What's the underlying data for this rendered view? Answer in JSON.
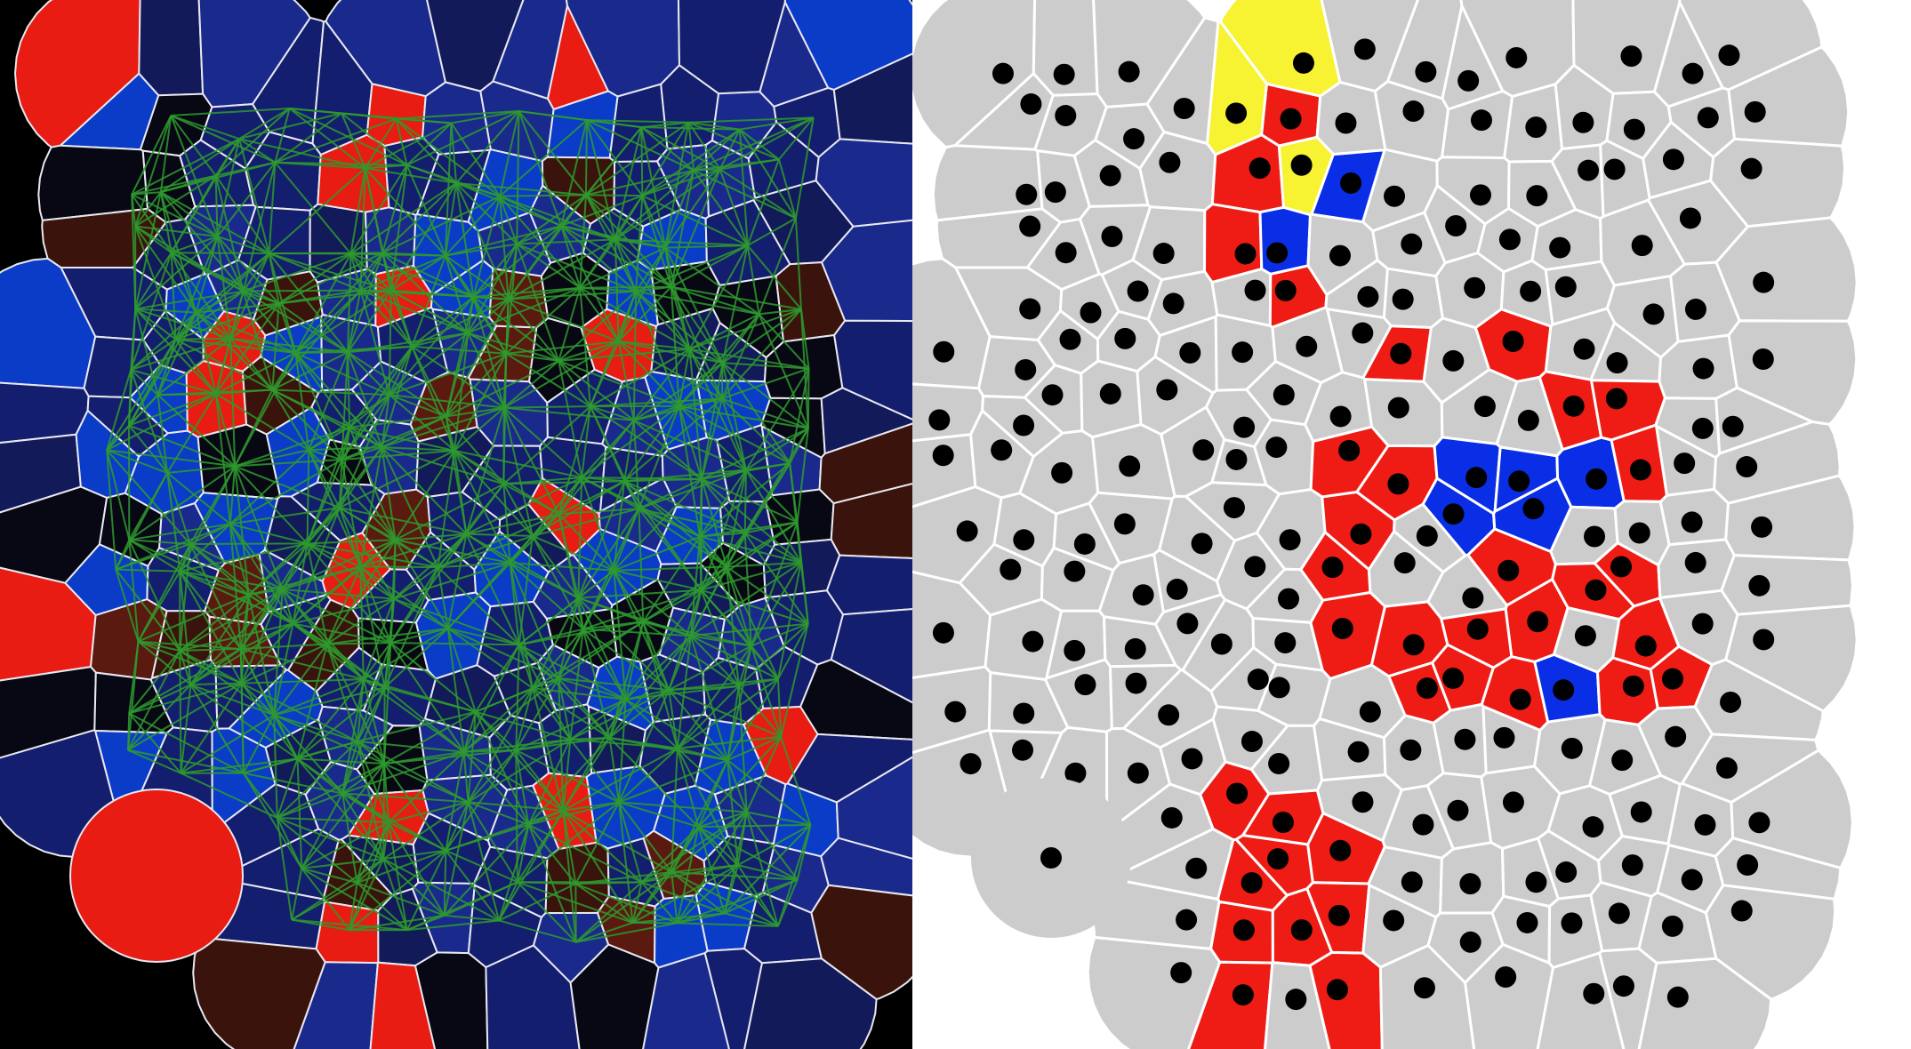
{
  "figure": {
    "panels": [
      {
        "name": "voronoi-network-intensity",
        "background": "#000000",
        "cell_stroke": "#e8e8f0",
        "network_color": "#2e9a2e",
        "palette": {
          "blue_dark": "#141e6e",
          "blue_mid": "#1a2a8c",
          "blue_bright": "#0a3cc8",
          "navy": "#121a5a",
          "black": "#080814",
          "dark_red": "#3a140c",
          "brown": "#5a1a10",
          "red": "#e81c12"
        }
      },
      {
        "name": "voronoi-classification",
        "background": "#ffffff",
        "cell_stroke": "#ffffff",
        "dot_color": "#000000",
        "palette": {
          "gray": "#cccccc",
          "red": "#ee1c14",
          "blue": "#0a2ee6",
          "yellow": "#f7f232"
        }
      }
    ]
  }
}
